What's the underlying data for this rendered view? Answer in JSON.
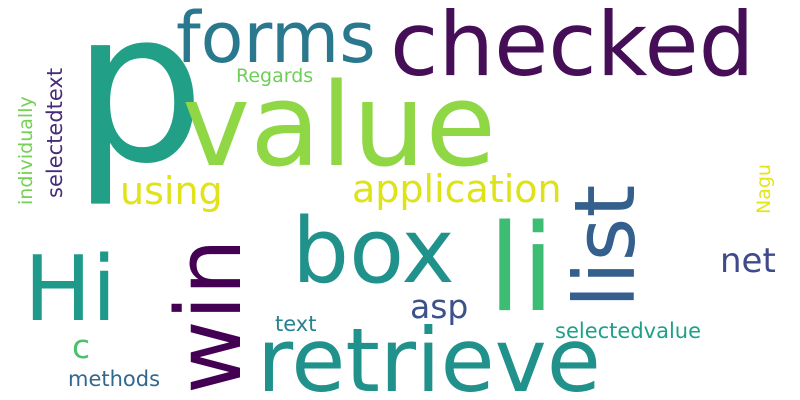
{
  "words": [
    {
      "text": "p",
      "color": "#21a087"
    },
    {
      "text": "value",
      "color": "#8fd744"
    },
    {
      "text": "checked",
      "color": "#450e57"
    },
    {
      "text": "forms",
      "color": "#2a788e"
    },
    {
      "text": "list",
      "color": "#355f8d"
    },
    {
      "text": "li",
      "color": "#3dbc74"
    },
    {
      "text": "box",
      "color": "#21918c"
    },
    {
      "text": "Hi",
      "color": "#1f9a8a"
    },
    {
      "text": "win",
      "color": "#440154"
    },
    {
      "text": "retrieve",
      "color": "#21918c"
    },
    {
      "text": "application",
      "color": "#dde318"
    },
    {
      "text": "using",
      "color": "#e1e31a"
    },
    {
      "text": "net",
      "color": "#3e4a89"
    },
    {
      "text": "asp",
      "color": "#3b528b"
    },
    {
      "text": "c",
      "color": "#4ac16d"
    },
    {
      "text": "methods",
      "color": "#31688e"
    },
    {
      "text": "text",
      "color": "#26828e"
    },
    {
      "text": "selectedvalue",
      "color": "#1fa088"
    },
    {
      "text": "Regards",
      "color": "#6ece58"
    },
    {
      "text": "individually",
      "color": "#75d054"
    },
    {
      "text": "selectedtext",
      "color": "#472c7a"
    },
    {
      "text": "Nagu",
      "color": "#e5e419"
    }
  ]
}
